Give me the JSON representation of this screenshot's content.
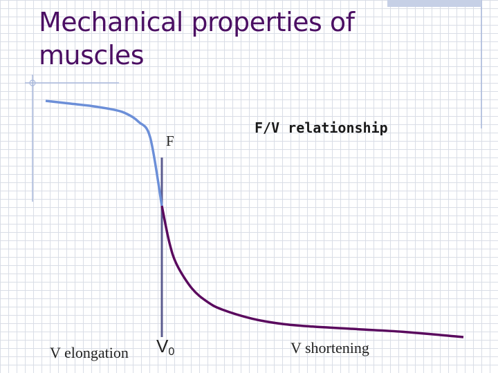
{
  "slide": {
    "title_line1": "Mechanical properties of",
    "title_line2": "muscles"
  },
  "chart_data": {
    "type": "line",
    "title": "F/V relationship",
    "ylabel": "F",
    "xlabel_left": "V elongation",
    "xlabel_right": "V shortening",
    "origin_label_main": "V",
    "origin_label_sub": "0",
    "series": [
      {
        "name": "elongation",
        "color": "#6c8fd8",
        "description": "force plateaus at high level when muscle lengthens",
        "x": [
          -1.0,
          -0.8,
          -0.6,
          -0.4,
          -0.3,
          -0.2,
          -0.1,
          0.0
        ],
        "y": [
          1.8,
          1.78,
          1.76,
          1.73,
          1.7,
          1.64,
          1.52,
          1.0
        ]
      },
      {
        "name": "shortening",
        "color": "#5a0a5e",
        "description": "force declines hyperbolically as shortening velocity rises",
        "x": [
          0.0,
          0.05,
          0.1,
          0.2,
          0.3,
          0.4,
          0.6,
          0.8,
          1.0,
          1.3,
          1.6,
          2.0
        ],
        "y": [
          1.0,
          0.72,
          0.55,
          0.37,
          0.27,
          0.21,
          0.14,
          0.1,
          0.08,
          0.06,
          0.04,
          0.0
        ]
      }
    ],
    "colors": {
      "axis": "#5b5b8f",
      "title": "#4b0f63"
    }
  }
}
